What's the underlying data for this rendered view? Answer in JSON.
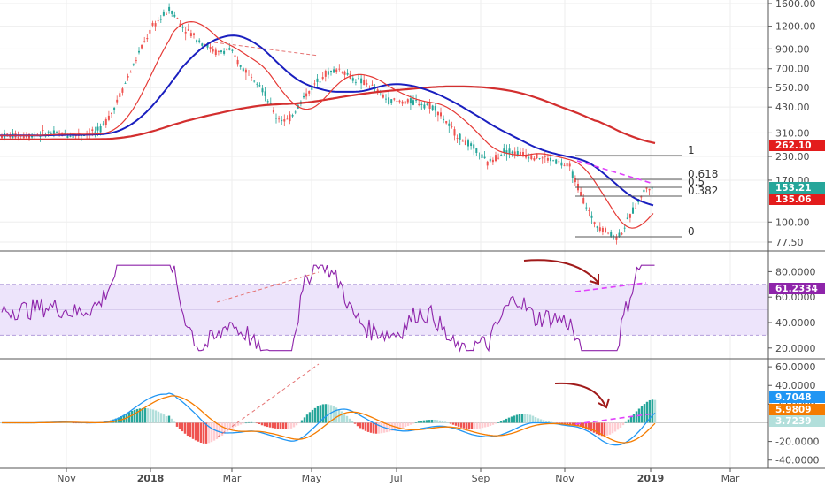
{
  "chart_data": [
    {
      "type": "candlestick",
      "scale": "log",
      "y_ticks": [
        "1600.00",
        "1200.00",
        "900.00",
        "700.00",
        "550.00",
        "430.00",
        "310.00",
        "230.00",
        "170.00",
        "100.00",
        "77.50"
      ],
      "price_tags": [
        {
          "label": "262.10",
          "color": "#e31c1c"
        },
        {
          "label": "153.21",
          "color": "#26a69a"
        },
        {
          "label": "135.06",
          "color": "#e31c1c"
        }
      ],
      "fib_levels": [
        {
          "label": "1"
        },
        {
          "label": "0.618"
        },
        {
          "label": "0.5"
        },
        {
          "label": "0.382"
        },
        {
          "label": "0"
        }
      ],
      "series": [
        {
          "color": "#d32f2f"
        },
        {
          "color": "#1a1fbf"
        },
        {
          "color": "#e53935"
        }
      ]
    },
    {
      "type": "line",
      "y_ticks": [
        "80.0000",
        "60.0000",
        "40.0000",
        "20.0000"
      ],
      "band": [
        30,
        70
      ],
      "band_color": "#ede4fb",
      "line_color": "#8e24aa",
      "last_tag": {
        "label": "61.2334",
        "color": "#8e24aa"
      }
    },
    {
      "type": "bar",
      "y_ticks": [
        "60.0000",
        "40.0000",
        "20.0000",
        "-20.0000",
        "-40.0000"
      ],
      "tags": [
        {
          "label": "9.7048",
          "color": "#2196f3"
        },
        {
          "label": "5.9809",
          "color": "#f57c00"
        },
        {
          "label": "3.7239",
          "color": "#b2dfdb"
        }
      ],
      "colors": {
        "pos": "#26a69a",
        "pos_light": "#b2dfdb",
        "neg": "#ef5350",
        "neg_light": "#ffcdd2",
        "macd": "#2196f3",
        "signal": "#f57c00"
      }
    }
  ],
  "x_axis": {
    "labels": [
      "Nov",
      "2018",
      "Mar",
      "May",
      "Jul",
      "Sep",
      "Nov",
      "2019",
      "Mar"
    ],
    "bold": [
      "2018",
      "2019"
    ]
  },
  "colors": {
    "annotation_red": "#a01a1a",
    "trend_pink": "#e040fb",
    "dash_red": "#e57373",
    "grid": "#eeeeee"
  }
}
